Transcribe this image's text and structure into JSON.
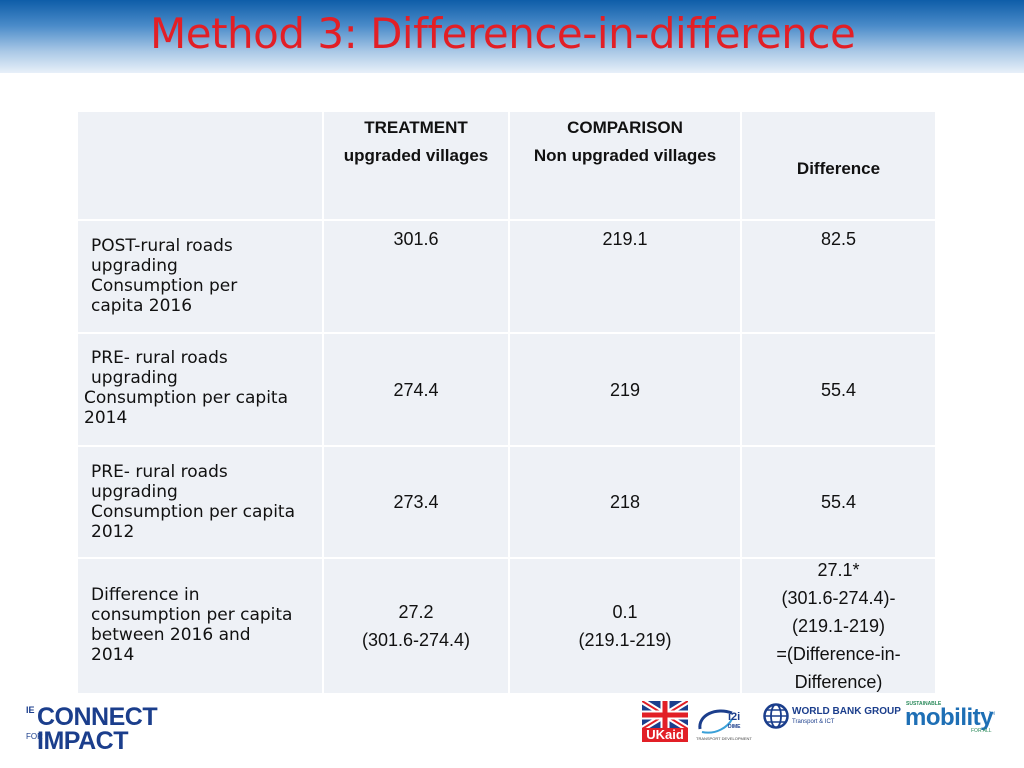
{
  "slide": {
    "title": "Method 3: Difference-in-difference"
  },
  "table": {
    "headers": {
      "treatment": {
        "line1": "TREATMENT",
        "line2": "upgraded villages"
      },
      "comparison": {
        "line1": "COMPARISON",
        "line2": "Non upgraded villages"
      },
      "difference": "Difference"
    },
    "rows": [
      {
        "label_lines": [
          "POST-rural roads",
          "upgrading",
          "Consumption per",
          "capita 2016"
        ],
        "treatment": "301.6",
        "comparison": "219.1",
        "difference": "82.5"
      },
      {
        "label_lines": [
          "PRE- rural roads",
          "upgrading",
          "Consumption per capita",
          "2014"
        ],
        "treatment": "274.4",
        "comparison": "219",
        "difference": "55.4"
      },
      {
        "label_lines": [
          "PRE- rural roads",
          "upgrading",
          "Consumption per capita",
          "2012"
        ],
        "treatment": "273.4",
        "comparison": "218",
        "difference": "55.4"
      },
      {
        "label_lines": [
          "Difference in",
          "consumption per capita",
          "between 2016 and",
          "2014"
        ],
        "treatment_lines": [
          "27.2",
          "(301.6-274.4)"
        ],
        "comparison_lines": [
          "0.1",
          "(219.1-219)"
        ],
        "difference_lines": [
          "27.1*",
          "(301.6-274.4)-",
          "(219.1-219)",
          "=(Difference-in-",
          "Difference)"
        ]
      }
    ]
  },
  "logos": {
    "ie_connect": {
      "prefix": "IE",
      "top_word": "CONNECT",
      "for_word": "FOR",
      "bottom_word": "IMPACT"
    },
    "ukaid": "UKaid",
    "i2i": {
      "mark": "i2i",
      "sub": "DIME",
      "caption": "TRANSPORT DEVELOPMENT"
    },
    "world_bank": {
      "name": "WORLD BANK GROUP",
      "sub": "Transport & ICT"
    },
    "sustainable_mobility": {
      "top": "SUSTAINABLE",
      "word": "mobility",
      "bottom": "FOR ALL"
    }
  },
  "colors": {
    "title": "#e21f26",
    "title_bar": "#0e5da8",
    "cell_bg": "#eef1f6",
    "logo_blue": "#1b3e8c"
  }
}
